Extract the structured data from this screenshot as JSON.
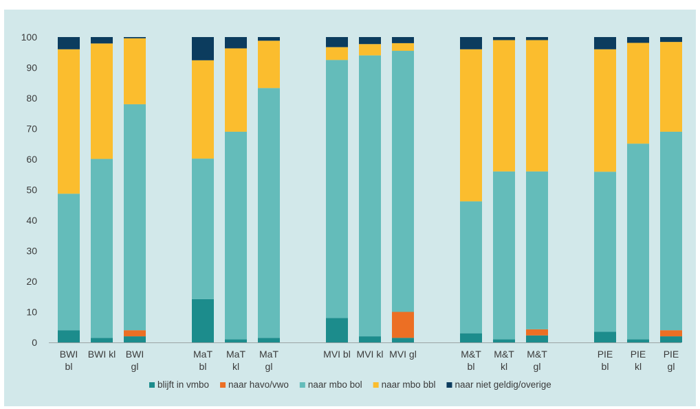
{
  "chart_data": {
    "type": "bar",
    "stacked": true,
    "ylim": [
      0,
      100
    ],
    "yticks": [
      0,
      10,
      20,
      30,
      40,
      50,
      60,
      70,
      80,
      90,
      100
    ],
    "grid": false,
    "legend_position": "bottom",
    "categories": [
      {
        "lines": [
          "BWI",
          "bl"
        ]
      },
      {
        "lines": [
          "BWI kl"
        ]
      },
      {
        "lines": [
          "BWI",
          "gl"
        ]
      },
      {
        "lines": [
          "MaT",
          "bl"
        ]
      },
      {
        "lines": [
          "MaT",
          "kl"
        ]
      },
      {
        "lines": [
          "MaT",
          "gl"
        ]
      },
      {
        "lines": [
          "MVI bl"
        ]
      },
      {
        "lines": [
          "MVI kl"
        ]
      },
      {
        "lines": [
          "MVI gl"
        ]
      },
      {
        "lines": [
          "M&T",
          "bl"
        ]
      },
      {
        "lines": [
          "M&T",
          "kl"
        ]
      },
      {
        "lines": [
          "M&T",
          "gl"
        ]
      },
      {
        "lines": [
          "PIE",
          "bl"
        ]
      },
      {
        "lines": [
          "PIE",
          "kl"
        ]
      },
      {
        "lines": [
          "PIE",
          "gl"
        ]
      }
    ],
    "groups": [
      [
        0,
        1,
        2
      ],
      [
        3,
        4,
        5
      ],
      [
        6,
        7,
        8
      ],
      [
        9,
        10,
        11
      ],
      [
        12,
        13,
        14
      ]
    ],
    "series": [
      {
        "name": "blijft in vmbo",
        "color": "#1c8c8c",
        "values": [
          4,
          1.5,
          2,
          14.2,
          1,
          1.5,
          8,
          2,
          1.5,
          3,
          1,
          2.3,
          3.5,
          1,
          2
        ]
      },
      {
        "name": "naar havo/vwo",
        "color": "#ec6f24",
        "values": [
          0,
          0,
          2,
          0,
          0,
          0,
          0,
          0,
          8.5,
          0,
          0,
          2,
          0,
          0,
          2
        ]
      },
      {
        "name": "naar mbo bol",
        "color": "#64bcba",
        "values": [
          44.7,
          58.6,
          74,
          46,
          68,
          81.8,
          84.5,
          92,
          85.5,
          43.2,
          55,
          51.7,
          52.4,
          64.1,
          65
        ]
      },
      {
        "name": "naar mbo bbl",
        "color": "#fbbd2e",
        "values": [
          47.3,
          37.8,
          21.6,
          32.2,
          27.3,
          15.5,
          4.2,
          3.7,
          2.5,
          49.8,
          43,
          43,
          40.1,
          33,
          29.4
        ]
      },
      {
        "name": "naar niet geldig/overige",
        "color": "#0c3c5e",
        "values": [
          4,
          2.1,
          0.4,
          7.6,
          3.7,
          1.2,
          3.3,
          2.3,
          2,
          4,
          1,
          1,
          4,
          1.9,
          1.6
        ]
      }
    ]
  }
}
